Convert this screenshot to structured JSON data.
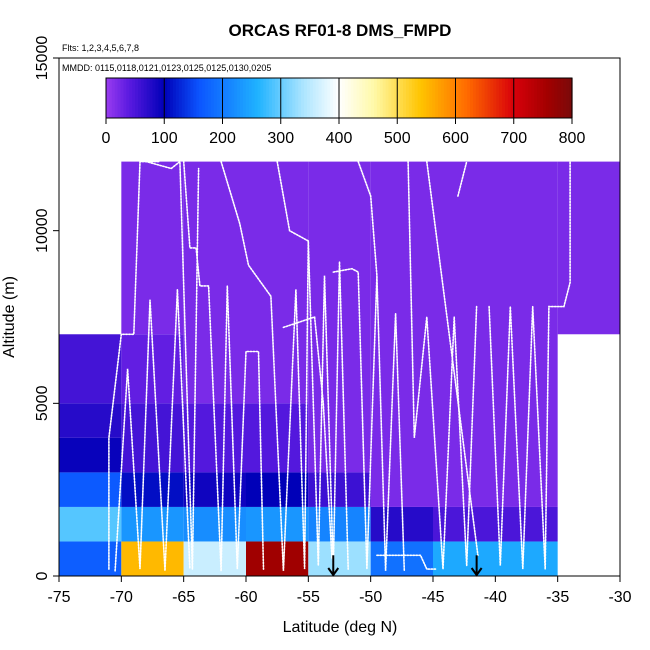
{
  "chart_data": {
    "type": "heatmap",
    "title": "ORCAS RF01-8 DMS_FMPD",
    "subtitle_lines": [
      "Flts: 1,2,3,4,5,6,7,8",
      "MMDD: 0115,0118,0121,0123,0125,0125,0130,0205"
    ],
    "xlabel": "Latitude (deg N)",
    "ylabel": "Altitude (m)",
    "xlim": [
      -75,
      -30
    ],
    "ylim": [
      0,
      15000
    ],
    "x_ticks": [
      -75,
      -70,
      -65,
      -60,
      -55,
      -50,
      -45,
      -40,
      -35,
      -30
    ],
    "y_ticks": [
      0,
      5000,
      10000,
      15000
    ],
    "colorbar": {
      "range": [
        0,
        800
      ],
      "ticks": [
        0,
        100,
        200,
        300,
        400,
        500,
        600,
        700,
        800
      ],
      "stops": [
        {
          "v": 0,
          "c": "#9a3cf0"
        },
        {
          "v": 40,
          "c": "#5a1ae0"
        },
        {
          "v": 100,
          "c": "#0000b8"
        },
        {
          "v": 160,
          "c": "#0b55ff"
        },
        {
          "v": 260,
          "c": "#1fb2ff"
        },
        {
          "v": 340,
          "c": "#aee6ff"
        },
        {
          "v": 400,
          "c": "#ffffff"
        },
        {
          "v": 460,
          "c": "#fff9a8"
        },
        {
          "v": 540,
          "c": "#ffc400"
        },
        {
          "v": 620,
          "c": "#ff6a00"
        },
        {
          "v": 700,
          "c": "#d8000a"
        },
        {
          "v": 760,
          "c": "#a00000"
        },
        {
          "v": 800,
          "c": "#7a0a0a"
        }
      ]
    },
    "cells": [
      {
        "lat": [
          -75,
          -70
        ],
        "alt": [
          0,
          1000
        ],
        "value": 170
      },
      {
        "lat": [
          -75,
          -70
        ],
        "alt": [
          1000,
          2000
        ],
        "value": 290
      },
      {
        "lat": [
          -75,
          -70
        ],
        "alt": [
          2000,
          3000
        ],
        "value": 165
      },
      {
        "lat": [
          -75,
          -70
        ],
        "alt": [
          3000,
          4000
        ],
        "value": 95
      },
      {
        "lat": [
          -75,
          -70
        ],
        "alt": [
          4000,
          5000
        ],
        "value": 75
      },
      {
        "lat": [
          -75,
          -70
        ],
        "alt": [
          5000,
          7000
        ],
        "value": 55
      },
      {
        "lat": [
          -70,
          -65
        ],
        "alt": [
          0,
          1000
        ],
        "value": 550
      },
      {
        "lat": [
          -70,
          -65
        ],
        "alt": [
          1000,
          2000
        ],
        "value": 230
      },
      {
        "lat": [
          -70,
          -65
        ],
        "alt": [
          2000,
          3000
        ],
        "value": 110
      },
      {
        "lat": [
          -70,
          -65
        ],
        "alt": [
          3000,
          5000
        ],
        "value": 55
      },
      {
        "lat": [
          -70,
          -65
        ],
        "alt": [
          5000,
          7000
        ],
        "value": 35
      },
      {
        "lat": [
          -70,
          -65
        ],
        "alt": [
          7000,
          12000
        ],
        "value": 20
      },
      {
        "lat": [
          -65,
          -60
        ],
        "alt": [
          0,
          1000
        ],
        "value": 360
      },
      {
        "lat": [
          -65,
          -60
        ],
        "alt": [
          1000,
          2000
        ],
        "value": 220
      },
      {
        "lat": [
          -65,
          -60
        ],
        "alt": [
          2000,
          3000
        ],
        "value": 90
      },
      {
        "lat": [
          -65,
          -60
        ],
        "alt": [
          3000,
          5000
        ],
        "value": 45
      },
      {
        "lat": [
          -65,
          -60
        ],
        "alt": [
          5000,
          12000
        ],
        "value": 20
      },
      {
        "lat": [
          -60,
          -55
        ],
        "alt": [
          0,
          1000
        ],
        "value": 760
      },
      {
        "lat": [
          -60,
          -55
        ],
        "alt": [
          1000,
          2000
        ],
        "value": 230
      },
      {
        "lat": [
          -60,
          -55
        ],
        "alt": [
          2000,
          3000
        ],
        "value": 100
      },
      {
        "lat": [
          -60,
          -55
        ],
        "alt": [
          3000,
          5000
        ],
        "value": 45
      },
      {
        "lat": [
          -60,
          -55
        ],
        "alt": [
          5000,
          12000
        ],
        "value": 20
      },
      {
        "lat": [
          -55,
          -50
        ],
        "alt": [
          0,
          1000
        ],
        "value": 330
      },
      {
        "lat": [
          -55,
          -50
        ],
        "alt": [
          1000,
          2000
        ],
        "value": 210
      },
      {
        "lat": [
          -55,
          -50
        ],
        "alt": [
          2000,
          3000
        ],
        "value": 60
      },
      {
        "lat": [
          -55,
          -50
        ],
        "alt": [
          3000,
          12000
        ],
        "value": 20
      },
      {
        "lat": [
          -50,
          -45
        ],
        "alt": [
          0,
          1000
        ],
        "value": 190
      },
      {
        "lat": [
          -50,
          -45
        ],
        "alt": [
          1000,
          2000
        ],
        "value": 75
      },
      {
        "lat": [
          -50,
          -45
        ],
        "alt": [
          2000,
          12000
        ],
        "value": 20
      },
      {
        "lat": [
          -45,
          -35
        ],
        "alt": [
          0,
          1000
        ],
        "value": 250
      },
      {
        "lat": [
          -45,
          -35
        ],
        "alt": [
          1000,
          2000
        ],
        "value": 50
      },
      {
        "lat": [
          -45,
          -35
        ],
        "alt": [
          2000,
          12000
        ],
        "value": 20
      },
      {
        "lat": [
          -35,
          -30
        ],
        "alt": [
          7000,
          12000
        ],
        "value": 20
      }
    ],
    "arrows": [
      {
        "lat": -53,
        "alt": 600
      },
      {
        "lat": -41.5,
        "alt": 600
      }
    ],
    "flight_tracks": [
      [
        [
          -71,
          200
        ],
        [
          -71,
          4000
        ],
        [
          -70,
          7000
        ],
        [
          -69,
          7000
        ],
        [
          -68.5,
          12000
        ],
        [
          -67,
          12000
        ]
      ],
      [
        [
          -70.5,
          150
        ],
        [
          -69.5,
          6000
        ],
        [
          -68.5,
          200
        ],
        [
          -67.7,
          8000
        ],
        [
          -66.5,
          150
        ],
        [
          -65.5,
          8300
        ],
        [
          -64.5,
          200
        ]
      ],
      [
        [
          -69,
          12100
        ],
        [
          -66,
          11800
        ],
        [
          -65.3,
          12000
        ],
        [
          -64.3,
          200
        ],
        [
          -63.8,
          11800
        ]
      ],
      [
        [
          -65,
          12000
        ],
        [
          -64.5,
          9500
        ],
        [
          -64,
          9500
        ],
        [
          -63.7,
          8400
        ],
        [
          -63,
          8400
        ],
        [
          -62,
          150
        ],
        [
          -61.5,
          8400
        ],
        [
          -60.7,
          200
        ],
        [
          -60,
          6500
        ],
        [
          -59,
          6500
        ],
        [
          -58.6,
          200
        ]
      ],
      [
        [
          -62,
          12000
        ],
        [
          -60.5,
          10200
        ],
        [
          -59.8,
          9000
        ],
        [
          -58,
          8100
        ],
        [
          -57,
          150
        ],
        [
          -56,
          8300
        ],
        [
          -55.3,
          200
        ],
        [
          -55,
          9700
        ]
      ],
      [
        [
          -57.5,
          12000
        ],
        [
          -56.5,
          10000
        ],
        [
          -55,
          9700
        ],
        [
          -54.2,
          300
        ],
        [
          -53.7,
          8700
        ],
        [
          -53,
          200
        ],
        [
          -52.5,
          9100
        ],
        [
          -51.8,
          200
        ]
      ],
      [
        [
          -57,
          7200
        ],
        [
          -54.5,
          7500
        ],
        [
          -53.8,
          5000
        ],
        [
          -53.1,
          500
        ]
      ],
      [
        [
          -53,
          8800
        ],
        [
          -51.5,
          8900
        ],
        [
          -51,
          8800
        ],
        [
          -50.3,
          200
        ],
        [
          -49.5,
          8700
        ],
        [
          -48.8,
          150
        ],
        [
          -48,
          7600
        ],
        [
          -47.3,
          150
        ]
      ],
      [
        [
          -51,
          12000
        ],
        [
          -50,
          11000
        ],
        [
          -49.5,
          8700
        ]
      ],
      [
        [
          -47,
          12000
        ],
        [
          -46.5,
          4000
        ],
        [
          -45.5,
          7500
        ],
        [
          -44.2,
          200
        ],
        [
          -43.3,
          7500
        ],
        [
          -42.3,
          300
        ],
        [
          -41.5,
          7800
        ]
      ],
      [
        [
          -45.5,
          12000
        ],
        [
          -41.4,
          600
        ]
      ],
      [
        [
          -43,
          11000
        ],
        [
          -42.3,
          12000
        ]
      ],
      [
        [
          -40.5,
          7800
        ],
        [
          -39.6,
          300
        ],
        [
          -38.8,
          7800
        ],
        [
          -37.8,
          200
        ],
        [
          -37,
          7800
        ],
        [
          -36,
          200
        ],
        [
          -35.7,
          7800
        ],
        [
          -34.5,
          7800
        ],
        [
          -34,
          8500
        ],
        [
          -34,
          12000
        ]
      ],
      [
        [
          -49.5,
          600
        ],
        [
          -46,
          600
        ],
        [
          -45.5,
          200
        ],
        [
          -44.8,
          200
        ]
      ]
    ]
  }
}
